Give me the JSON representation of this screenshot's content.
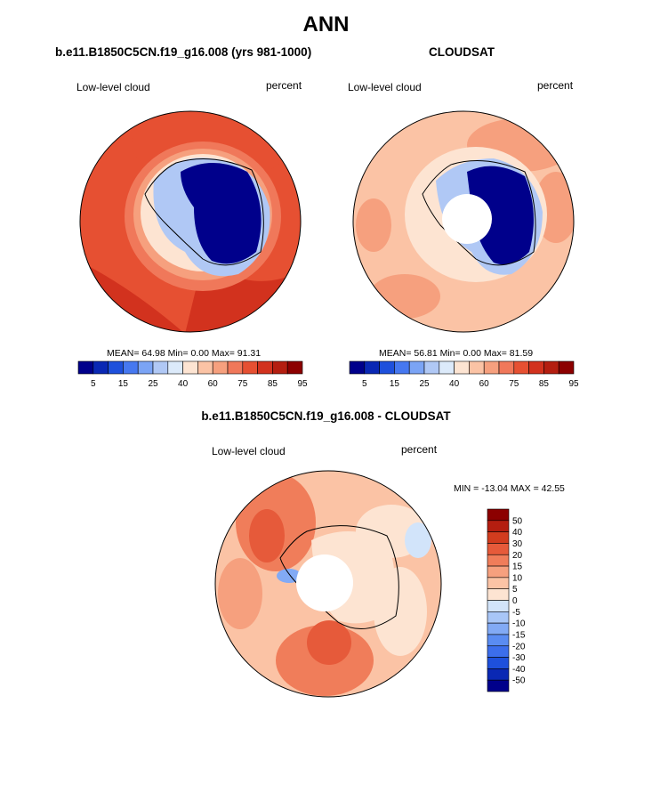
{
  "title": "ANN",
  "colors": {
    "abs_palette": [
      "#00008b",
      "#0a28b4",
      "#1e50dc",
      "#4678f0",
      "#7ba4f5",
      "#b0c8f5",
      "#dceafa",
      "#fde4d2",
      "#fbc3a5",
      "#f6a07e",
      "#f0785a",
      "#e65032",
      "#d2321e",
      "#b41e10",
      "#8c0000"
    ],
    "diff_palette": [
      "#00008b",
      "#0a28b4",
      "#1e50dc",
      "#3c6eec",
      "#5a8cf2",
      "#82aaf5",
      "#a8c6f7",
      "#d2e4fa",
      "#fde4d2",
      "#fbc3a5",
      "#f6a07e",
      "#f07d5a",
      "#e65a3a",
      "#d23c1e",
      "#b41e10",
      "#8c0000"
    ]
  },
  "chart_data": [
    {
      "type": "heatmap",
      "projection": "south-polar-stereographic",
      "title": "b.e11.B1850C5CN.f19_g16.008 (yrs 981-1000)",
      "left_label": "Low-level cloud",
      "right_label": "percent",
      "stats": "MEAN=  64.98  Min=   0.00  Max=  91.31",
      "mean": 64.98,
      "min": 0.0,
      "max": 91.31,
      "colorbar": {
        "orientation": "horizontal",
        "ticks": [
          "5",
          "15",
          "25",
          "40",
          "60",
          "75",
          "85",
          "95"
        ]
      }
    },
    {
      "type": "heatmap",
      "projection": "south-polar-stereographic",
      "title": "CLOUDSAT",
      "left_label": "Low-level cloud",
      "right_label": "percent",
      "stats": "MEAN=  56.81  Min=   0.00  Max=  81.59",
      "mean": 56.81,
      "min": 0.0,
      "max": 81.59,
      "colorbar": {
        "orientation": "horizontal",
        "ticks": [
          "5",
          "15",
          "25",
          "40",
          "60",
          "75",
          "85",
          "95"
        ]
      }
    },
    {
      "type": "heatmap",
      "projection": "south-polar-stereographic",
      "title": "b.e11.B1850C5CN.f19_g16.008 - CLOUDSAT",
      "left_label": "Low-level cloud",
      "right_label": "percent",
      "stats": "MIN = -13.04 MAX =  42.55",
      "min": -13.04,
      "max": 42.55,
      "colorbar": {
        "orientation": "vertical",
        "ticks": [
          "50",
          "40",
          "30",
          "20",
          "15",
          "10",
          "5",
          "0",
          "-5",
          "-10",
          "-15",
          "-20",
          "-30",
          "-40",
          "-50"
        ]
      }
    }
  ]
}
